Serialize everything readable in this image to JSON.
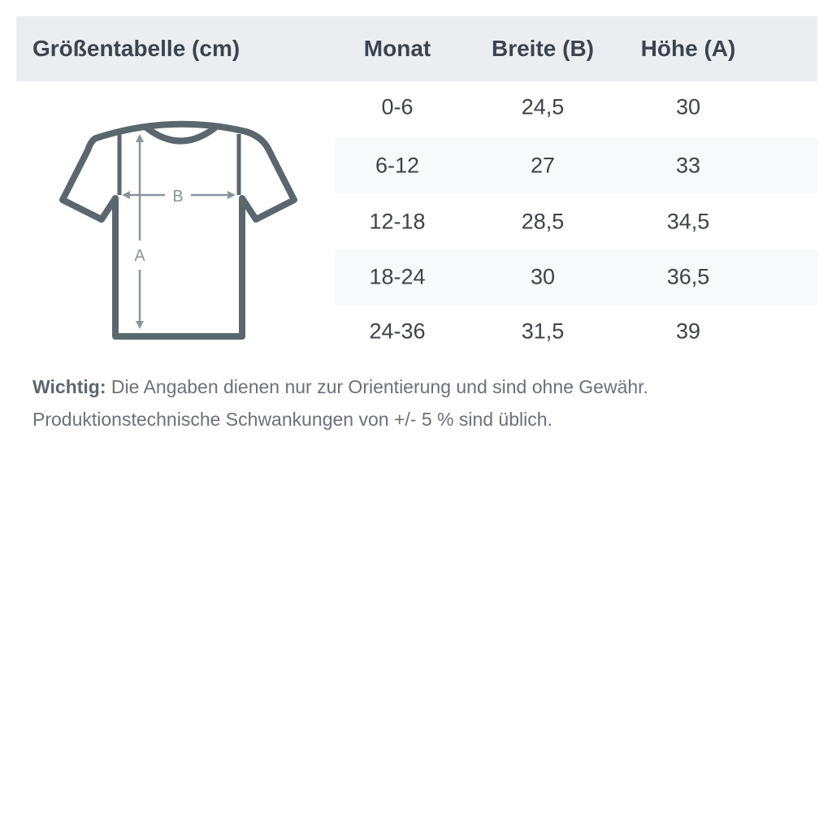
{
  "header": {
    "title": "Größentabelle (cm)",
    "columns": [
      "Monat",
      "Breite (B)",
      "Höhe (A)"
    ]
  },
  "rows": [
    {
      "monat": "0-6",
      "breite": "24,5",
      "hoehe": "30"
    },
    {
      "monat": "6-12",
      "breite": "27",
      "hoehe": "33"
    },
    {
      "monat": "12-18",
      "breite": "28,5",
      "hoehe": "34,5"
    },
    {
      "monat": "18-24",
      "breite": "30",
      "hoehe": "36,5"
    },
    {
      "monat": "24-36",
      "breite": "31,5",
      "hoehe": "39"
    }
  ],
  "diagram": {
    "label_b": "B",
    "label_a": "A",
    "outline_color": "#5a676e",
    "arrow_color": "#8a949c"
  },
  "note": {
    "label": "Wichtig:",
    "text": " Die Angaben dienen nur zur Orientierung und sind ohne Gewähr. Produktionstechnische Schwankungen von +/- 5 % sind üblich."
  }
}
